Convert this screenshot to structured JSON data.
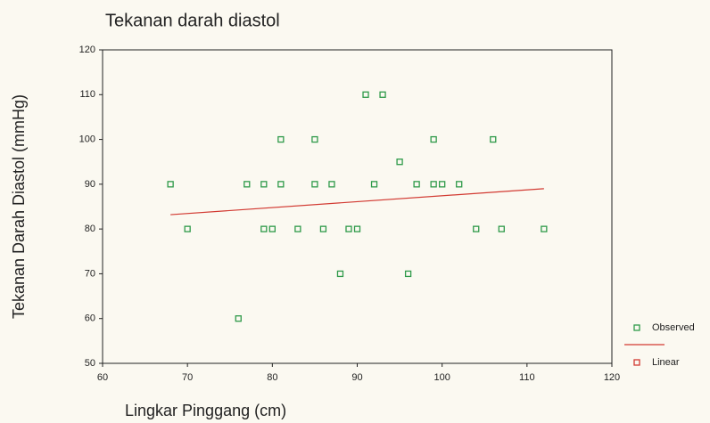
{
  "chart_data": {
    "type": "scatter",
    "title": "Tekanan darah diastol",
    "x_label": "Lingkar Pinggang (cm)",
    "y_label": "Tekanan Darah Diastol (mmHg)",
    "xlim": [
      60,
      120
    ],
    "xticks": [
      60,
      70,
      80,
      90,
      100,
      110,
      120
    ],
    "ylim": [
      50,
      120
    ],
    "yticks": [
      50,
      60,
      70,
      80,
      90,
      100,
      110,
      120
    ],
    "legend": "right",
    "series": [
      {
        "name": "Observed",
        "color": "#2f9a4a",
        "x": [
          68,
          70,
          76,
          77,
          79,
          79,
          80,
          81,
          81,
          83,
          85,
          85,
          86,
          87,
          88,
          89,
          90,
          91,
          92,
          93,
          95,
          96,
          97,
          99,
          99,
          100,
          102,
          104,
          106,
          107,
          112
        ],
        "values": [
          90,
          80,
          60,
          90,
          90,
          80,
          80,
          90,
          100,
          80,
          100,
          90,
          80,
          90,
          70,
          80,
          80,
          110,
          90,
          110,
          95,
          70,
          90,
          100,
          90,
          90,
          90,
          80,
          100,
          80,
          80
        ]
      },
      {
        "name": "Linear",
        "type": "line",
        "color": "#d23a32",
        "x": [
          68,
          112
        ],
        "values": [
          83.2,
          89.0
        ]
      }
    ]
  }
}
